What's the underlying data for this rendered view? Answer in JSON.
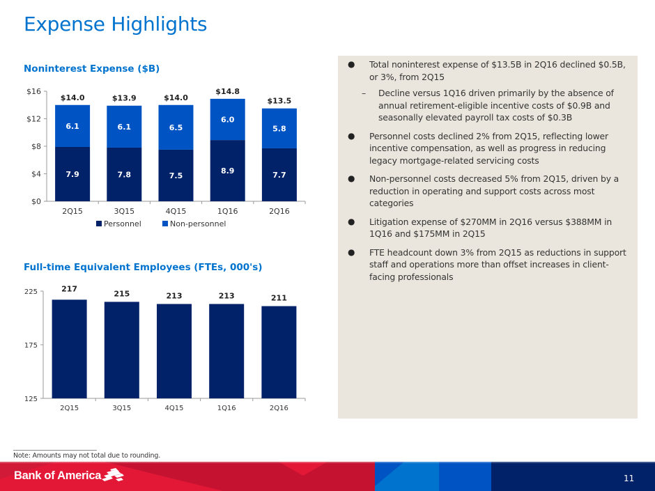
{
  "page": {
    "title": "Expense Highlights",
    "note": "Note: Amounts may not total due to rounding.",
    "page_number": "11",
    "brand": "Bank of America",
    "colors": {
      "accent": "#0073cf",
      "personnel": "#012169",
      "non_personnel": "#0053c2",
      "panel": "#ebe6dd",
      "footer_red": "#e31837",
      "footer_dark_red": "#c41230",
      "footer_navy": "#012169"
    }
  },
  "bullets": [
    {
      "text": "Total noninterest expense of $13.5B in 2Q16 declined $0.5B, or 3%, from 2Q15",
      "sub": [
        "Decline versus 1Q16 driven primarily by the absence of annual retirement-eligible incentive costs of $0.9B and seasonally elevated payroll tax costs of $0.3B"
      ]
    },
    {
      "text": "Personnel costs declined 2% from 2Q15, reflecting lower incentive compensation, as well as progress in reducing legacy mortgage-related servicing costs",
      "sub": []
    },
    {
      "text": "Non-personnel costs decreased 5% from 2Q15, driven by a reduction in operating and support costs across most categories",
      "sub": []
    },
    {
      "text": "Litigation expense of $270MM in 2Q16 versus $388MM in 1Q16 and $175MM in 2Q15",
      "sub": []
    },
    {
      "text": "FTE headcount down 3% from 2Q15 as reductions in support staff and operations more than offset increases in client-facing professionals",
      "sub": []
    }
  ],
  "chart_data": [
    {
      "type": "bar",
      "stacked": true,
      "title": "Noninterest Expense ($B)",
      "categories": [
        "2Q15",
        "3Q15",
        "4Q15",
        "1Q16",
        "2Q16"
      ],
      "series": [
        {
          "name": "Personnel",
          "values": [
            7.9,
            7.8,
            7.5,
            8.9,
            7.7
          ],
          "labels": [
            "7.9",
            "7.8",
            "7.5",
            "8.9",
            "7.7"
          ],
          "color": "#012169"
        },
        {
          "name": "Non-personnel",
          "values": [
            6.1,
            6.1,
            6.5,
            6.0,
            5.8
          ],
          "labels": [
            "6.1",
            "6.1",
            "6.5",
            "6.0",
            "5.8"
          ],
          "color": "#0053c2"
        }
      ],
      "totals": [
        14.0,
        13.9,
        14.0,
        14.8,
        13.5
      ],
      "total_labels": [
        "$14.0",
        "$13.9",
        "$14.0",
        "$14.8",
        "$13.5"
      ],
      "yticks": [
        0,
        4,
        8,
        12,
        16
      ],
      "ytick_labels": [
        "$0",
        "$4",
        "$8",
        "$12",
        "$16"
      ],
      "ylim": [
        0,
        16
      ],
      "xlabel": "",
      "ylabel": "",
      "legend": "bottom",
      "grid": false
    },
    {
      "type": "bar",
      "title": "Full-time Equivalent Employees (FTEs, 000's)",
      "categories": [
        "2Q15",
        "3Q15",
        "4Q15",
        "1Q16",
        "2Q16"
      ],
      "values": [
        217,
        215,
        213,
        213,
        211
      ],
      "value_labels": [
        "217",
        "215",
        "213",
        "213",
        "211"
      ],
      "yticks": [
        125,
        175,
        225
      ],
      "ytick_labels": [
        "125",
        "175",
        "225"
      ],
      "ylim": [
        125,
        225
      ],
      "color": "#012169",
      "xlabel": "",
      "ylabel": "",
      "grid": false
    }
  ]
}
